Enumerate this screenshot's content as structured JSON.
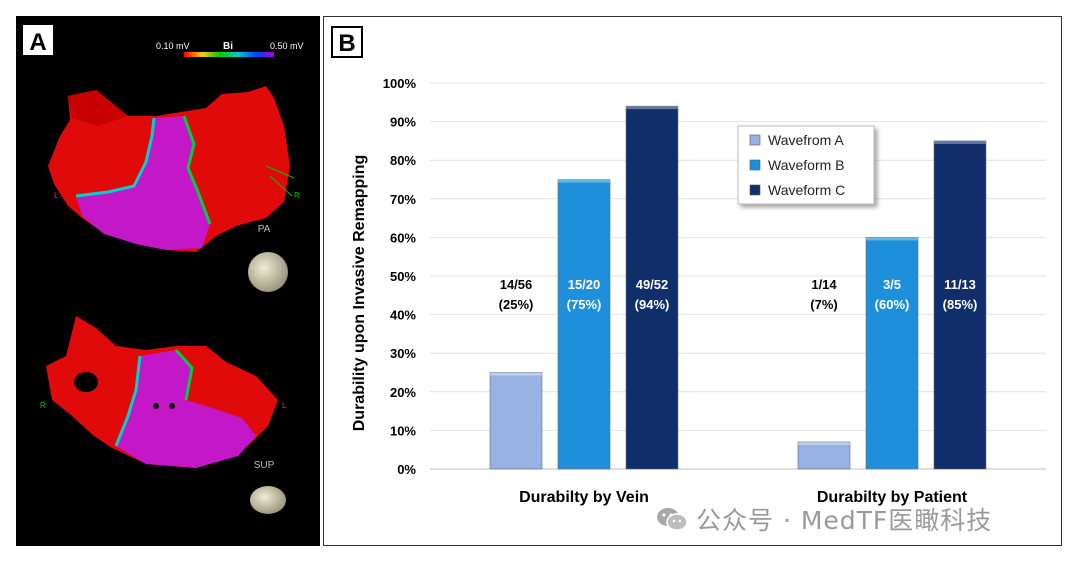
{
  "panel_a": {
    "label": "A",
    "scale_min": "0.10 mV",
    "scale_title": "Bi",
    "scale_max": "0.50 mV",
    "view1_label": "PA",
    "view2_label": "SUP",
    "marker_l": "L",
    "marker_r": "R"
  },
  "panel_b": {
    "label": "B"
  },
  "chart_data": {
    "type": "bar",
    "categories": [
      "Durabilty by Vein",
      "Durabilty by Patient"
    ],
    "series": [
      {
        "name": "Wavefrom A",
        "values": [
          25,
          7
        ],
        "labels": [
          "14/56\n(25%)",
          "1/14\n(7%)"
        ],
        "color": "#98B2E4"
      },
      {
        "name": "Waveform B",
        "values": [
          75,
          60
        ],
        "labels": [
          "15/20\n(75%)",
          "3/5\n(60%)"
        ],
        "color": "#1E90DB"
      },
      {
        "name": "Waveform C",
        "values": [
          94,
          85
        ],
        "labels": [
          "49/52\n(94%)",
          "11/13\n(85%)"
        ],
        "color": "#102F6A"
      }
    ],
    "ylabel": "Durability upon Invasive Remapping",
    "xlabel": "",
    "ylim": [
      0,
      100
    ],
    "yticks": [
      0,
      10,
      20,
      30,
      40,
      50,
      60,
      70,
      80,
      90,
      100
    ],
    "ytick_suffix": "%",
    "grid": true,
    "legend": "top-right"
  },
  "watermark": {
    "text": "公众号 · MedTF医瞰科技",
    "icon": "wechat-icon"
  }
}
